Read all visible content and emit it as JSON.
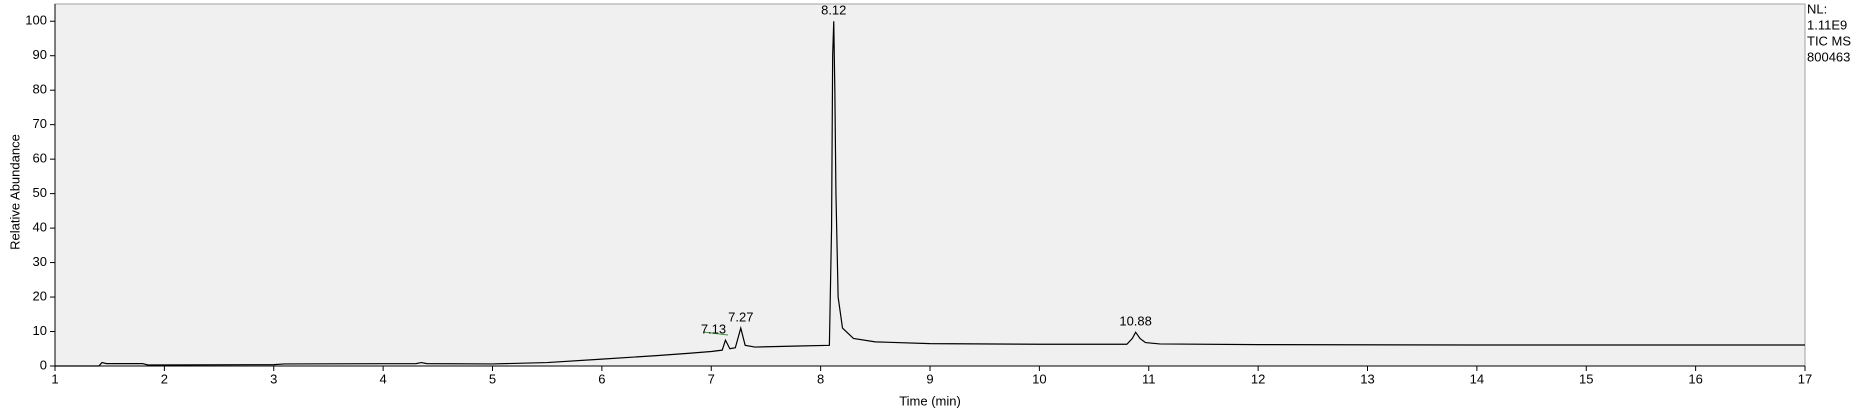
{
  "chart_data": {
    "type": "line",
    "x_label": "Time (min)",
    "y_label": "Relative Abundance",
    "info": [
      "NL:",
      "1.11E9",
      "TIC  MS",
      "800463"
    ],
    "series": [
      {
        "color": "#000000",
        "x": [
          1,
          1.4,
          1.43,
          1.47,
          1.8,
          1.85,
          3,
          3.1,
          4.3,
          4.35,
          4.4,
          5,
          5.5,
          6,
          6.5,
          6.8,
          7,
          7.1,
          7.13,
          7.17,
          7.22,
          7.27,
          7.31,
          7.4,
          7.8,
          8.08,
          8.1,
          8.11,
          8.12,
          8.13,
          8.14,
          8.16,
          8.2,
          8.3,
          8.5,
          9,
          10,
          10.8,
          10.85,
          10.88,
          10.92,
          10.97,
          11.1,
          12,
          14,
          17
        ],
        "y": [
          0,
          0,
          1,
          0.7,
          0.7,
          0.3,
          0.4,
          0.6,
          0.7,
          1,
          0.7,
          0.6,
          1,
          2,
          3,
          3.7,
          4.2,
          4.6,
          7.5,
          5,
          5.3,
          11,
          6,
          5.5,
          5.8,
          6,
          40,
          90,
          100,
          80,
          50,
          20,
          11,
          8,
          7,
          6.5,
          6.3,
          6.3,
          8,
          9.8,
          8,
          6.8,
          6.4,
          6.2,
          6.1,
          6.1
        ]
      }
    ],
    "peak_labels": [
      7.13,
      7.27,
      8.12,
      10.88
    ],
    "xlim": [
      1,
      17
    ],
    "xticks": [
      1,
      2,
      3,
      4,
      5,
      6,
      7,
      8,
      9,
      10,
      11,
      12,
      13,
      14,
      15,
      16,
      17
    ],
    "ylim": [
      0,
      105
    ],
    "yticks": [
      0,
      10,
      20,
      30,
      40,
      50,
      60,
      70,
      80,
      90,
      100
    ]
  }
}
